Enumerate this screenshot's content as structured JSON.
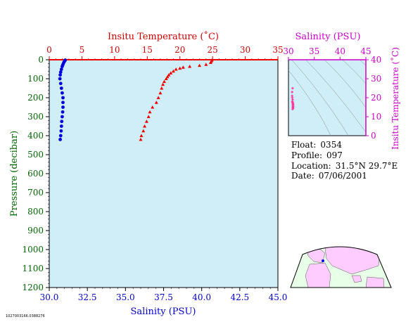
{
  "chart_data": [
    {
      "type": "scatter",
      "title": "",
      "top_axis": {
        "label": "Insitu Temperature (˚C)",
        "range": [
          0,
          35
        ],
        "ticks": [
          "0",
          "5",
          "10",
          "15",
          "20",
          "25",
          "30",
          "35"
        ],
        "color": "#cc0000"
      },
      "bottom_axis": {
        "label": "Salinity (PSU)",
        "range": [
          30.0,
          45.0
        ],
        "ticks": [
          "30.0",
          "32.5",
          "35.0",
          "37.5",
          "40.0",
          "42.5",
          "45.0"
        ],
        "color": "#0000cc"
      },
      "left_axis": {
        "label": "Pressure (decibar)",
        "range": [
          0,
          1200
        ],
        "inverted": true,
        "ticks": [
          "0",
          "100",
          "200",
          "300",
          "400",
          "500",
          "600",
          "700",
          "800",
          "900",
          "1000",
          "1100",
          "1200"
        ],
        "color": "#006600"
      },
      "series": [
        {
          "marker": "triangle",
          "color": "#ee0000",
          "axis": "temperature",
          "points": [
            {
              "x": 24.9,
              "y": 2
            },
            {
              "x": 24.8,
              "y": 8
            },
            {
              "x": 24.7,
              "y": 15
            },
            {
              "x": 24.0,
              "y": 25
            },
            {
              "x": 23.0,
              "y": 30
            },
            {
              "x": 21.5,
              "y": 35
            },
            {
              "x": 20.5,
              "y": 40
            },
            {
              "x": 20.0,
              "y": 45
            },
            {
              "x": 19.4,
              "y": 50
            },
            {
              "x": 19.0,
              "y": 60
            },
            {
              "x": 18.6,
              "y": 70
            },
            {
              "x": 18.3,
              "y": 80
            },
            {
              "x": 18.1,
              "y": 90
            },
            {
              "x": 17.9,
              "y": 100
            },
            {
              "x": 17.6,
              "y": 115
            },
            {
              "x": 17.4,
              "y": 130
            },
            {
              "x": 17.2,
              "y": 150
            },
            {
              "x": 17.0,
              "y": 175
            },
            {
              "x": 16.7,
              "y": 200
            },
            {
              "x": 16.4,
              "y": 225
            },
            {
              "x": 15.8,
              "y": 250
            },
            {
              "x": 15.4,
              "y": 275
            },
            {
              "x": 15.2,
              "y": 300
            },
            {
              "x": 14.9,
              "y": 325
            },
            {
              "x": 14.6,
              "y": 350
            },
            {
              "x": 14.4,
              "y": 375
            },
            {
              "x": 14.1,
              "y": 400
            },
            {
              "x": 14.0,
              "y": 420
            }
          ]
        },
        {
          "marker": "circle",
          "color": "#0000dd",
          "axis": "salinity",
          "points": [
            {
              "x": 31.05,
              "y": 2
            },
            {
              "x": 31.0,
              "y": 8
            },
            {
              "x": 30.95,
              "y": 15
            },
            {
              "x": 30.9,
              "y": 25
            },
            {
              "x": 30.85,
              "y": 35
            },
            {
              "x": 30.8,
              "y": 50
            },
            {
              "x": 30.75,
              "y": 65
            },
            {
              "x": 30.72,
              "y": 80
            },
            {
              "x": 30.7,
              "y": 100
            },
            {
              "x": 30.75,
              "y": 125
            },
            {
              "x": 30.8,
              "y": 150
            },
            {
              "x": 30.85,
              "y": 175
            },
            {
              "x": 30.9,
              "y": 200
            },
            {
              "x": 30.9,
              "y": 225
            },
            {
              "x": 30.9,
              "y": 250
            },
            {
              "x": 30.88,
              "y": 275
            },
            {
              "x": 30.85,
              "y": 300
            },
            {
              "x": 30.82,
              "y": 325
            },
            {
              "x": 30.8,
              "y": 350
            },
            {
              "x": 30.78,
              "y": 375
            },
            {
              "x": 30.75,
              "y": 400
            },
            {
              "x": 30.72,
              "y": 420
            }
          ]
        }
      ]
    },
    {
      "type": "scatter",
      "title": "",
      "top_axis": {
        "label": "Salinity (PSU)",
        "range": [
          30,
          45
        ],
        "ticks": [
          "30",
          "35",
          "40",
          "45"
        ],
        "color": "#cc00cc"
      },
      "right_axis": {
        "label": "Insitu Temperature (˚C)",
        "range": [
          0,
          40
        ],
        "ticks": [
          "0",
          "10",
          "20",
          "30",
          "40"
        ],
        "color": "#cc00cc"
      },
      "series": [
        {
          "marker": "cross",
          "color": "#ff3399",
          "points": [
            {
              "x": 30.8,
              "y": 25
            },
            {
              "x": 30.7,
              "y": 23
            },
            {
              "x": 30.7,
              "y": 21
            },
            {
              "x": 30.75,
              "y": 20
            },
            {
              "x": 30.8,
              "y": 19
            },
            {
              "x": 30.75,
              "y": 18
            },
            {
              "x": 30.8,
              "y": 17.5
            },
            {
              "x": 30.85,
              "y": 17
            },
            {
              "x": 30.9,
              "y": 16.5
            },
            {
              "x": 30.85,
              "y": 16
            },
            {
              "x": 30.9,
              "y": 15.5
            },
            {
              "x": 30.85,
              "y": 15
            },
            {
              "x": 30.9,
              "y": 14.5
            },
            {
              "x": 30.8,
              "y": 14
            }
          ]
        }
      ]
    }
  ],
  "info": {
    "float_label": "Float:",
    "float_value": "0354",
    "profile_label": "Profile:",
    "profile_value": "097",
    "location_label": "Location:",
    "location_value": "31.5°N 29.7°E",
    "date_label": "Date:",
    "date_value": "07/06/2001"
  },
  "footnote": "1027003166.0388276",
  "map": {
    "land_color": "#ffccff",
    "ocean_color": "#e8ffe8",
    "marker_color": "#0000ff"
  }
}
